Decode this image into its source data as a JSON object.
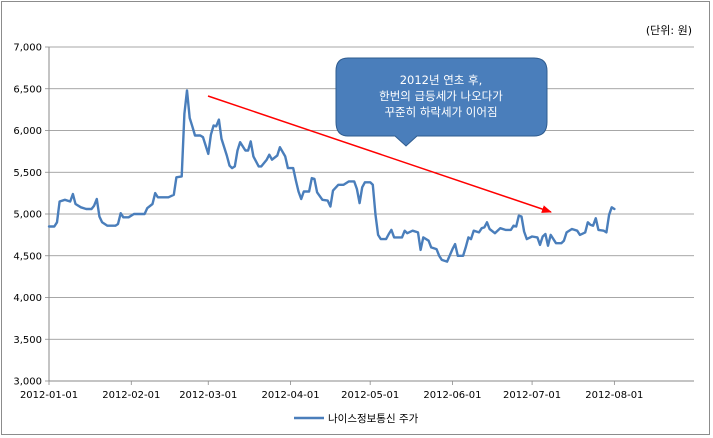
{
  "chart_data": {
    "type": "line",
    "unit_label": "(단위: 원)",
    "y_ticks": [
      "3,000",
      "3,500",
      "4,000",
      "4,500",
      "5,000",
      "5,500",
      "6,000",
      "6,500",
      "7,000"
    ],
    "ylim": [
      3000,
      7000
    ],
    "x_ticks": [
      "2012-01-01",
      "2012-02-01",
      "2012-03-01",
      "2012-04-01",
      "2012-05-01",
      "2012-06-01",
      "2012-07-01",
      "2012-08-01"
    ],
    "xlim": [
      "2012-01-01",
      "2012-08-31"
    ],
    "grid": "horizontal",
    "legend_position": "bottom",
    "series": [
      {
        "name": "나이스정보통신 주가",
        "color": "#4a7ebb",
        "points": [
          [
            "2012-01-01",
            4850
          ],
          [
            "2012-01-03",
            4850
          ],
          [
            "2012-01-04",
            4900
          ],
          [
            "2012-01-05",
            5150
          ],
          [
            "2012-01-07",
            5170
          ],
          [
            "2012-01-09",
            5150
          ],
          [
            "2012-01-10",
            5240
          ],
          [
            "2012-01-11",
            5120
          ],
          [
            "2012-01-13",
            5080
          ],
          [
            "2012-01-15",
            5060
          ],
          [
            "2012-01-17",
            5060
          ],
          [
            "2012-01-18",
            5100
          ],
          [
            "2012-01-19",
            5180
          ],
          [
            "2012-01-20",
            4970
          ],
          [
            "2012-01-21",
            4900
          ],
          [
            "2012-01-23",
            4860
          ],
          [
            "2012-01-26",
            4860
          ],
          [
            "2012-01-27",
            4880
          ],
          [
            "2012-01-28",
            5010
          ],
          [
            "2012-01-29",
            4960
          ],
          [
            "2012-01-31",
            4960
          ],
          [
            "2012-02-02",
            5000
          ],
          [
            "2012-02-06",
            5000
          ],
          [
            "2012-02-07",
            5070
          ],
          [
            "2012-02-09",
            5120
          ],
          [
            "2012-02-10",
            5250
          ],
          [
            "2012-02-11",
            5200
          ],
          [
            "2012-02-15",
            5200
          ],
          [
            "2012-02-17",
            5230
          ],
          [
            "2012-02-18",
            5440
          ],
          [
            "2012-02-20",
            5450
          ],
          [
            "2012-02-21",
            6200
          ],
          [
            "2012-02-22",
            6480
          ],
          [
            "2012-02-23",
            6150
          ],
          [
            "2012-02-24",
            6050
          ],
          [
            "2012-02-25",
            5940
          ],
          [
            "2012-02-27",
            5940
          ],
          [
            "2012-02-28",
            5920
          ],
          [
            "2012-03-01",
            5720
          ],
          [
            "2012-03-02",
            5950
          ],
          [
            "2012-03-03",
            6060
          ],
          [
            "2012-03-04",
            6050
          ],
          [
            "2012-03-05",
            6130
          ],
          [
            "2012-03-06",
            5900
          ],
          [
            "2012-03-08",
            5700
          ],
          [
            "2012-03-09",
            5580
          ],
          [
            "2012-03-10",
            5550
          ],
          [
            "2012-03-11",
            5570
          ],
          [
            "2012-03-12",
            5760
          ],
          [
            "2012-03-13",
            5860
          ],
          [
            "2012-03-15",
            5760
          ],
          [
            "2012-03-16",
            5760
          ],
          [
            "2012-03-17",
            5870
          ],
          [
            "2012-03-18",
            5690
          ],
          [
            "2012-03-20",
            5570
          ],
          [
            "2012-03-21",
            5570
          ],
          [
            "2012-03-23",
            5650
          ],
          [
            "2012-03-24",
            5710
          ],
          [
            "2012-03-25",
            5650
          ],
          [
            "2012-03-27",
            5700
          ],
          [
            "2012-03-28",
            5800
          ],
          [
            "2012-03-30",
            5690
          ],
          [
            "2012-03-31",
            5550
          ],
          [
            "2012-04-02",
            5550
          ],
          [
            "2012-04-03",
            5400
          ],
          [
            "2012-04-04",
            5270
          ],
          [
            "2012-04-05",
            5180
          ],
          [
            "2012-04-06",
            5270
          ],
          [
            "2012-04-08",
            5270
          ],
          [
            "2012-04-09",
            5430
          ],
          [
            "2012-04-10",
            5420
          ],
          [
            "2012-04-11",
            5260
          ],
          [
            "2012-04-13",
            5170
          ],
          [
            "2012-04-15",
            5160
          ],
          [
            "2012-04-16",
            5090
          ],
          [
            "2012-04-17",
            5280
          ],
          [
            "2012-04-19",
            5350
          ],
          [
            "2012-04-21",
            5350
          ],
          [
            "2012-04-23",
            5390
          ],
          [
            "2012-04-25",
            5390
          ],
          [
            "2012-04-26",
            5300
          ],
          [
            "2012-04-27",
            5130
          ],
          [
            "2012-04-28",
            5320
          ],
          [
            "2012-04-29",
            5380
          ],
          [
            "2012-05-01",
            5380
          ],
          [
            "2012-05-02",
            5350
          ],
          [
            "2012-05-03",
            4990
          ],
          [
            "2012-05-04",
            4750
          ],
          [
            "2012-05-05",
            4700
          ],
          [
            "2012-05-07",
            4700
          ],
          [
            "2012-05-08",
            4760
          ],
          [
            "2012-05-09",
            4810
          ],
          [
            "2012-05-10",
            4720
          ],
          [
            "2012-05-13",
            4720
          ],
          [
            "2012-05-14",
            4800
          ],
          [
            "2012-05-15",
            4770
          ],
          [
            "2012-05-17",
            4800
          ],
          [
            "2012-05-19",
            4780
          ],
          [
            "2012-05-20",
            4570
          ],
          [
            "2012-05-21",
            4720
          ],
          [
            "2012-05-23",
            4680
          ],
          [
            "2012-05-24",
            4600
          ],
          [
            "2012-05-26",
            4580
          ],
          [
            "2012-05-27",
            4500
          ],
          [
            "2012-05-28",
            4450
          ],
          [
            "2012-05-30",
            4430
          ],
          [
            "2012-06-01",
            4580
          ],
          [
            "2012-06-02",
            4640
          ],
          [
            "2012-06-03",
            4500
          ],
          [
            "2012-06-05",
            4500
          ],
          [
            "2012-06-06",
            4600
          ],
          [
            "2012-06-07",
            4720
          ],
          [
            "2012-06-08",
            4700
          ],
          [
            "2012-06-09",
            4800
          ],
          [
            "2012-06-11",
            4780
          ],
          [
            "2012-06-12",
            4830
          ],
          [
            "2012-06-13",
            4840
          ],
          [
            "2012-06-14",
            4900
          ],
          [
            "2012-06-15",
            4820
          ],
          [
            "2012-06-17",
            4770
          ],
          [
            "2012-06-19",
            4830
          ],
          [
            "2012-06-21",
            4810
          ],
          [
            "2012-06-23",
            4810
          ],
          [
            "2012-06-24",
            4860
          ],
          [
            "2012-06-25",
            4850
          ],
          [
            "2012-06-26",
            4980
          ],
          [
            "2012-06-27",
            4970
          ],
          [
            "2012-06-28",
            4790
          ],
          [
            "2012-06-29",
            4700
          ],
          [
            "2012-07-01",
            4730
          ],
          [
            "2012-07-03",
            4720
          ],
          [
            "2012-07-04",
            4630
          ],
          [
            "2012-07-05",
            4730
          ],
          [
            "2012-07-06",
            4760
          ],
          [
            "2012-07-07",
            4620
          ],
          [
            "2012-07-08",
            4750
          ],
          [
            "2012-07-10",
            4650
          ],
          [
            "2012-07-12",
            4650
          ],
          [
            "2012-07-13",
            4680
          ],
          [
            "2012-07-14",
            4780
          ],
          [
            "2012-07-16",
            4820
          ],
          [
            "2012-07-18",
            4800
          ],
          [
            "2012-07-19",
            4750
          ],
          [
            "2012-07-21",
            4780
          ],
          [
            "2012-07-22",
            4900
          ],
          [
            "2012-07-23",
            4870
          ],
          [
            "2012-07-24",
            4860
          ],
          [
            "2012-07-25",
            4950
          ],
          [
            "2012-07-26",
            4810
          ],
          [
            "2012-07-28",
            4800
          ],
          [
            "2012-07-29",
            4780
          ],
          [
            "2012-07-30",
            4990
          ],
          [
            "2012-07-31",
            5080
          ],
          [
            "2012-08-01",
            5060
          ]
        ]
      }
    ],
    "annotation": {
      "lines": [
        "2012년 연초 후,",
        "한번의 급등세가 나오다가",
        "꾸준히 하락세가 이어짐"
      ],
      "fill": "#4a7ebb",
      "arrow_color": "#ff0000"
    }
  }
}
